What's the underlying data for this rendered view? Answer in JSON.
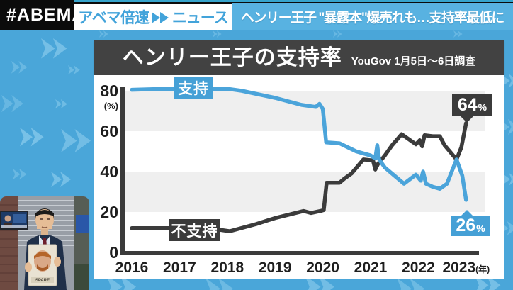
{
  "colors": {
    "background_blue": "#4aa6d9",
    "chevron_light": "#84c8eb",
    "headline_bg": "#58b2e1",
    "accent_blue": "#45a0d6",
    "charcoal": "#3b3b3b",
    "band_gray": "#efefef"
  },
  "top_bar": {
    "logo": "#ABEMA",
    "program_left": "アベマ倍速",
    "program_right": "ニュース",
    "ff_icon": "fast-forward",
    "headline": "ヘンリー王子 \"暴露本\"爆売れも…支持率最低に"
  },
  "panel": {
    "title": "ヘンリー王子の支持率",
    "subtitle": "YouGov 1月5日～6日調査"
  },
  "chart_data": {
    "type": "line",
    "title": "ヘンリー王子の支持率",
    "source": "YouGov 1月5日～6日調査",
    "x_ticks": [
      2016,
      2017,
      2018,
      2019,
      2020,
      2021,
      2022,
      2023
    ],
    "x_unit": "(年)",
    "y_ticks": [
      0,
      20,
      40,
      60,
      80
    ],
    "y_unit": "(%)",
    "xlim": [
      2016,
      2023
    ],
    "ylim": [
      0,
      88
    ],
    "grid_bands": [
      [
        60,
        80
      ],
      [
        20,
        40
      ]
    ],
    "legend_position": "on-line labels",
    "series": [
      {
        "name": "支持",
        "color": "#4ba4da",
        "end_value": "26",
        "end_unit": "%",
        "points": [
          [
            2016.0,
            80.5
          ],
          [
            2016.7,
            81
          ],
          [
            2018.0,
            81
          ],
          [
            2018.3,
            80
          ],
          [
            2019.0,
            76.5
          ],
          [
            2019.55,
            73
          ],
          [
            2019.85,
            72
          ],
          [
            2019.93,
            73.5
          ],
          [
            2020.0,
            71
          ],
          [
            2020.07,
            54.5
          ],
          [
            2020.35,
            54
          ],
          [
            2020.7,
            50
          ],
          [
            2021.0,
            48
          ],
          [
            2021.1,
            46.5
          ],
          [
            2021.14,
            53
          ],
          [
            2021.18,
            46
          ],
          [
            2021.3,
            42
          ],
          [
            2021.55,
            37
          ],
          [
            2021.7,
            34
          ],
          [
            2021.95,
            38.5
          ],
          [
            2022.05,
            35.5
          ],
          [
            2022.1,
            40
          ],
          [
            2022.16,
            34
          ],
          [
            2022.3,
            32.5
          ],
          [
            2022.45,
            31.5
          ],
          [
            2022.6,
            34
          ],
          [
            2022.8,
            46
          ],
          [
            2022.92,
            38
          ],
          [
            2023.0,
            26
          ]
        ]
      },
      {
        "name": "不支持",
        "color": "#3b3b3b",
        "end_value": "64",
        "end_unit": "%",
        "points": [
          [
            2016.0,
            12
          ],
          [
            2017.0,
            12
          ],
          [
            2017.75,
            11.5
          ],
          [
            2018.05,
            10.5
          ],
          [
            2018.6,
            14
          ],
          [
            2019.0,
            17
          ],
          [
            2019.6,
            20.5
          ],
          [
            2019.75,
            19.5
          ],
          [
            2019.95,
            20.5
          ],
          [
            2020.02,
            21
          ],
          [
            2020.08,
            34.5
          ],
          [
            2020.35,
            34.5
          ],
          [
            2020.45,
            36.5
          ],
          [
            2020.6,
            39
          ],
          [
            2020.85,
            46
          ],
          [
            2021.05,
            45.5
          ],
          [
            2021.1,
            41
          ],
          [
            2021.16,
            44
          ],
          [
            2021.3,
            48
          ],
          [
            2021.45,
            53
          ],
          [
            2021.65,
            58.5
          ],
          [
            2021.8,
            56
          ],
          [
            2021.95,
            53.5
          ],
          [
            2022.03,
            55.5
          ],
          [
            2022.08,
            52.5
          ],
          [
            2022.13,
            58
          ],
          [
            2022.3,
            57.5
          ],
          [
            2022.45,
            57.5
          ],
          [
            2022.55,
            53
          ],
          [
            2022.8,
            46
          ],
          [
            2022.9,
            52
          ],
          [
            2023.0,
            64
          ]
        ]
      }
    ]
  },
  "video_inset": {
    "description": "news anchor holding book",
    "book_title": "SPARE"
  }
}
